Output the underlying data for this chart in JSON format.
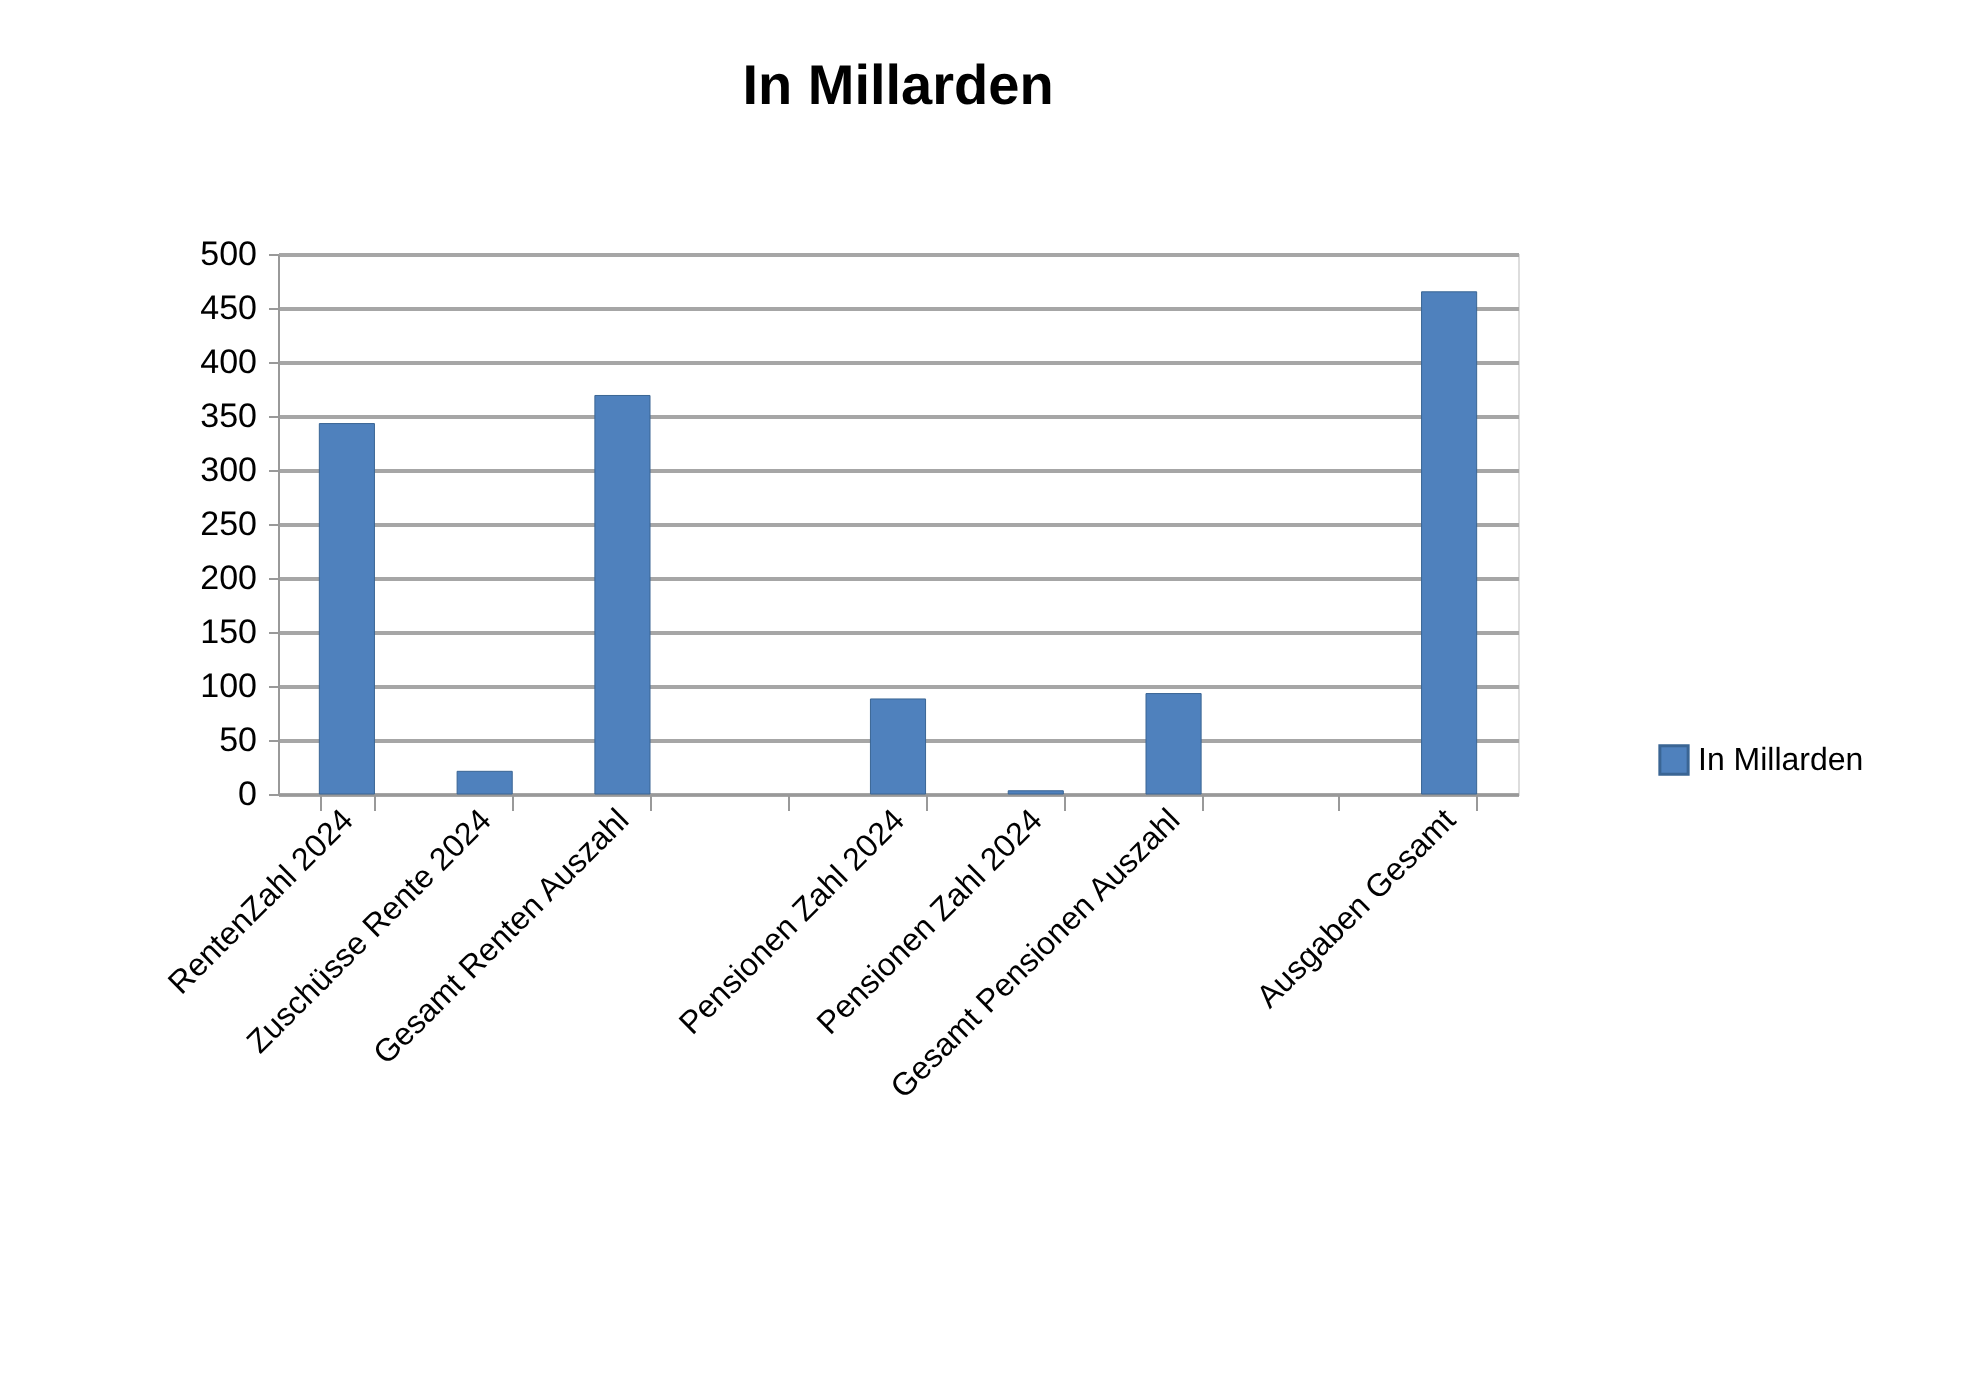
{
  "chart_data": {
    "type": "bar",
    "title": "In Millarden",
    "categories": [
      "RentenZahl 2024",
      "Zuschüsse Rente 2024",
      "Gesamt Renten Auszahl",
      null,
      "Pensionen Zahl 2024",
      "Pensionen Zahl 2024",
      "Gesamt Pensionen Auszahl",
      null,
      "Ausgaben Gesamt"
    ],
    "series": [
      {
        "name": "In Millarden",
        "color": "#4f81bd",
        "values": [
          343,
          21,
          369,
          null,
          88,
          3,
          93,
          null,
          465
        ]
      }
    ],
    "ylim": [
      0,
      500
    ],
    "yticks": [
      0,
      50,
      100,
      150,
      200,
      250,
      300,
      350,
      400,
      450,
      500
    ],
    "grid": "y",
    "legend": "right"
  }
}
